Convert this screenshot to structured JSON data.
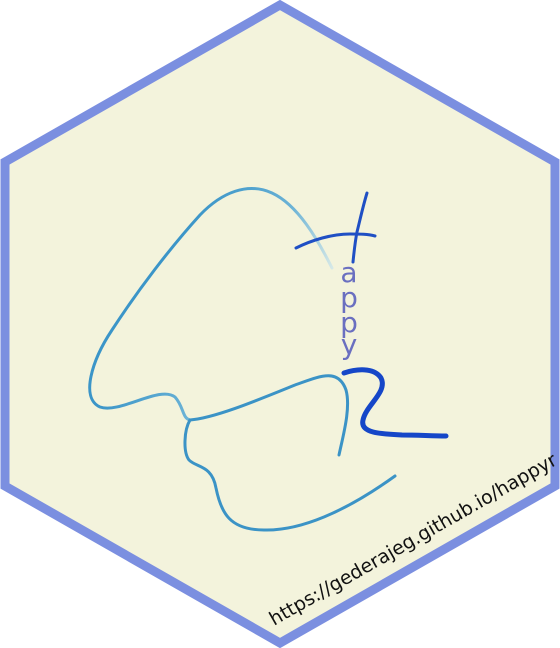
{
  "logo": {
    "letters": [
      "a",
      "p",
      "p",
      "y"
    ],
    "url": "https://gederajeg.github.io/happyr"
  },
  "colors": {
    "hex_fill": "#f3f3dc",
    "hex_border": "#7b8fe0",
    "curve_light": "#b8dde6",
    "curve_mid": "#4ba0cc",
    "curve_dark": "#2e86c1",
    "glyph_blue": "#1f4fc4",
    "letters": "#6a6fc0",
    "url_text": "#111111"
  }
}
